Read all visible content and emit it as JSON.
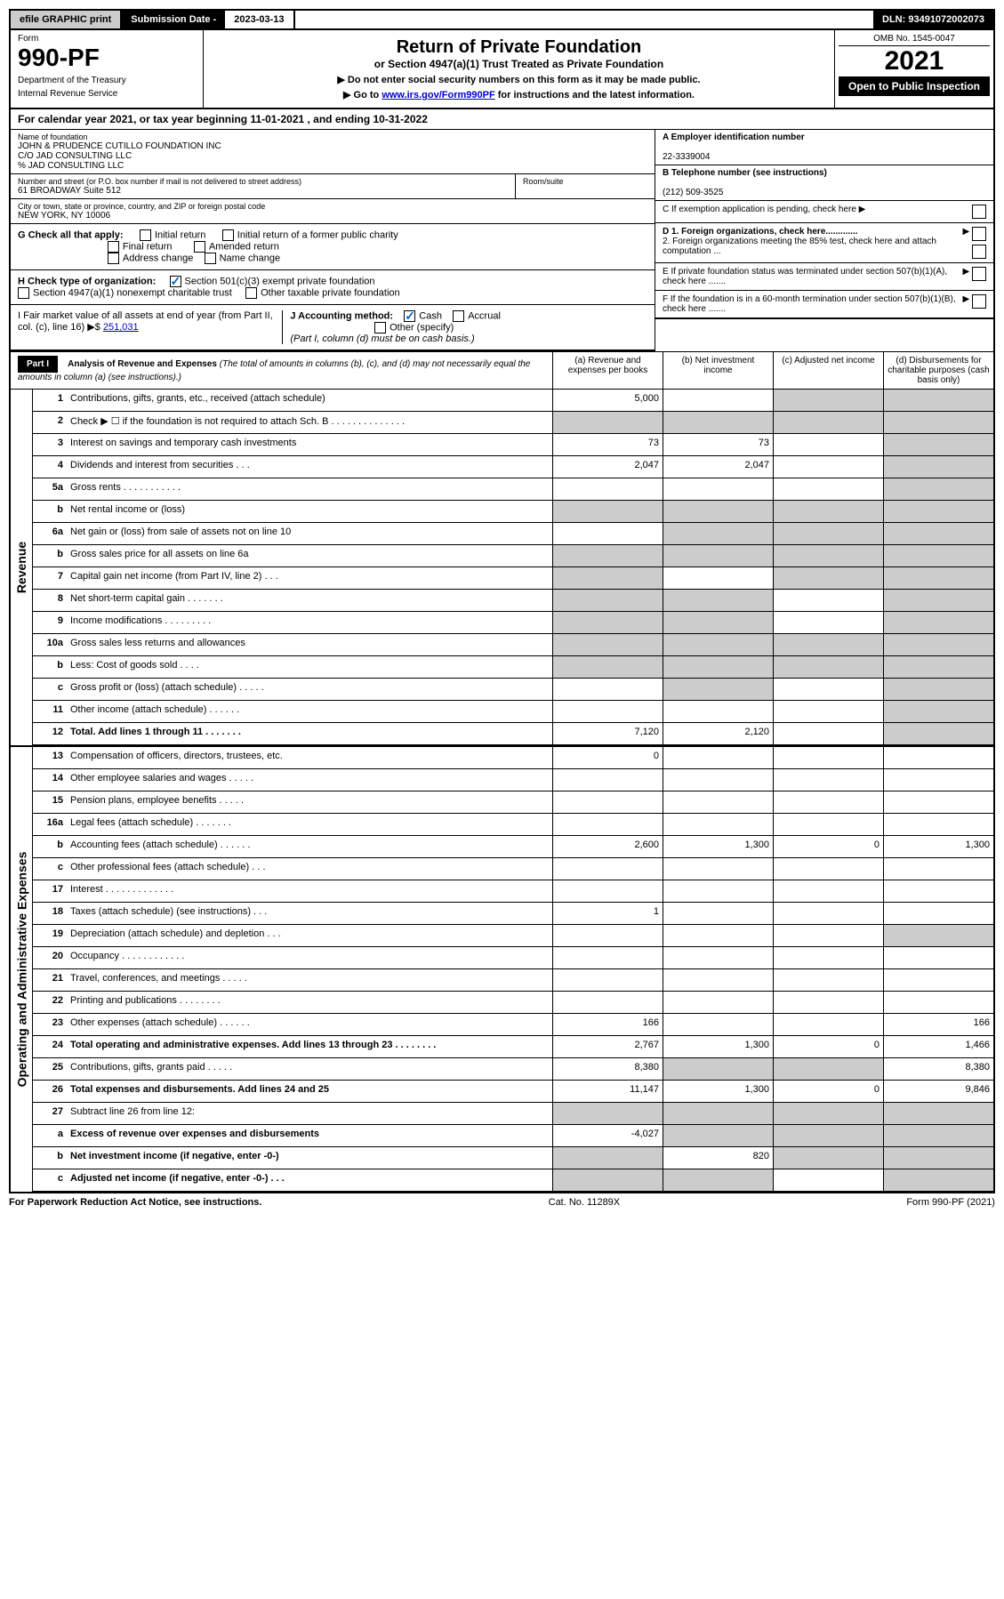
{
  "topbar": {
    "efile": "efile GRAPHIC print",
    "sub_label": "Submission Date - ",
    "sub_date": "2023-03-13",
    "dln": "DLN: 93491072002073"
  },
  "header": {
    "form_label": "Form",
    "form_number": "990-PF",
    "dept1": "Department of the Treasury",
    "dept2": "Internal Revenue Service",
    "title": "Return of Private Foundation",
    "subtitle": "or Section 4947(a)(1) Trust Treated as Private Foundation",
    "note1": "▶ Do not enter social security numbers on this form as it may be made public.",
    "note2_pre": "▶ Go to ",
    "note2_link": "www.irs.gov/Form990PF",
    "note2_post": " for instructions and the latest information.",
    "omb": "OMB No. 1545-0047",
    "year": "2021",
    "open": "Open to Public Inspection"
  },
  "calyear": "For calendar year 2021, or tax year beginning 11-01-2021                    , and ending 10-31-2022",
  "info": {
    "name_label": "Name of foundation",
    "name1": "JOHN & PRUDENCE CUTILLO FOUNDATION INC",
    "name2": "C/O JAD CONSULTING LLC",
    "name3": "% JAD CONSULTING LLC",
    "addr_label": "Number and street (or P.O. box number if mail is not delivered to street address)",
    "addr": "61 BROADWAY Suite 512",
    "room_label": "Room/suite",
    "city_label": "City or town, state or province, country, and ZIP or foreign postal code",
    "city": "NEW YORK, NY  10006",
    "ein_label": "A Employer identification number",
    "ein": "22-3339004",
    "phone_label": "B Telephone number (see instructions)",
    "phone": "(212) 509-3525",
    "c_label": "C If exemption application is pending, check here",
    "d1_label": "D 1. Foreign organizations, check here.............",
    "d2_label": "2. Foreign organizations meeting the 85% test, check here and attach computation ...",
    "e_label": "E  If private foundation status was terminated under section 507(b)(1)(A), check here .......",
    "f_label": "F  If the foundation is in a 60-month termination under section 507(b)(1)(B), check here .......",
    "g_label": "G Check all that apply:",
    "g_initial": "Initial return",
    "g_initial_former": "Initial return of a former public charity",
    "g_final": "Final return",
    "g_amended": "Amended return",
    "g_address": "Address change",
    "g_name": "Name change",
    "h_label": "H Check type of organization:",
    "h_501c3": "Section 501(c)(3) exempt private foundation",
    "h_4947": "Section 4947(a)(1) nonexempt charitable trust",
    "h_other": "Other taxable private foundation",
    "i_label": "I Fair market value of all assets at end of year (from Part II, col. (c), line 16) ▶$",
    "i_value": "251,031",
    "j_label": "J Accounting method:",
    "j_cash": "Cash",
    "j_accrual": "Accrual",
    "j_other": "Other (specify)",
    "j_note": "(Part I, column (d) must be on cash basis.)"
  },
  "part1": {
    "header": "Part I",
    "title": "Analysis of Revenue and Expenses",
    "title_note": " (The total of amounts in columns (b), (c), and (d) may not necessarily equal the amounts in column (a) (see instructions).)",
    "col_a": "(a) Revenue and expenses per books",
    "col_b": "(b) Net investment income",
    "col_c": "(c) Adjusted net income",
    "col_d": "(d) Disbursements for charitable purposes (cash basis only)"
  },
  "sections": {
    "revenue": "Revenue",
    "expenses": "Operating and Administrative Expenses"
  },
  "rows": [
    {
      "num": "1",
      "desc": "Contributions, gifts, grants, etc., received (attach schedule)",
      "a": "5,000",
      "b": "",
      "c": "",
      "d": "",
      "grey_c": true,
      "grey_d": true
    },
    {
      "num": "2",
      "desc": "Check ▶ ☐ if the foundation is not required to attach Sch. B    .  .  .  .  .  .  .  .  .  .  .  .  .  .",
      "a": "",
      "b": "",
      "c": "",
      "d": "",
      "grey_a": true,
      "grey_b": true,
      "grey_c": true,
      "grey_d": true
    },
    {
      "num": "3",
      "desc": "Interest on savings and temporary cash investments",
      "a": "73",
      "b": "73",
      "c": "",
      "d": "",
      "grey_d": true
    },
    {
      "num": "4",
      "desc": "Dividends and interest from securities   .  .  .",
      "a": "2,047",
      "b": "2,047",
      "c": "",
      "d": "",
      "grey_d": true
    },
    {
      "num": "5a",
      "desc": "Gross rents   .  .  .  .  .  .  .  .  .  .  .",
      "a": "",
      "b": "",
      "c": "",
      "d": "",
      "grey_d": true
    },
    {
      "num": "b",
      "desc": "Net rental income or (loss)",
      "a": "",
      "b": "",
      "c": "",
      "d": "",
      "grey_a": true,
      "grey_b": true,
      "grey_c": true,
      "grey_d": true
    },
    {
      "num": "6a",
      "desc": "Net gain or (loss) from sale of assets not on line 10",
      "a": "",
      "b": "",
      "c": "",
      "d": "",
      "grey_b": true,
      "grey_c": true,
      "grey_d": true
    },
    {
      "num": "b",
      "desc": "Gross sales price for all assets on line 6a",
      "a": "",
      "b": "",
      "c": "",
      "d": "",
      "grey_a": true,
      "grey_b": true,
      "grey_c": true,
      "grey_d": true
    },
    {
      "num": "7",
      "desc": "Capital gain net income (from Part IV, line 2)   .  .  .",
      "a": "",
      "b": "",
      "c": "",
      "d": "",
      "grey_a": true,
      "grey_c": true,
      "grey_d": true
    },
    {
      "num": "8",
      "desc": "Net short-term capital gain   .  .  .  .  .  .  .",
      "a": "",
      "b": "",
      "c": "",
      "d": "",
      "grey_a": true,
      "grey_b": true,
      "grey_d": true
    },
    {
      "num": "9",
      "desc": "Income modifications   .  .  .  .  .  .  .  .  .",
      "a": "",
      "b": "",
      "c": "",
      "d": "",
      "grey_a": true,
      "grey_b": true,
      "grey_d": true
    },
    {
      "num": "10a",
      "desc": "Gross sales less returns and allowances",
      "a": "",
      "b": "",
      "c": "",
      "d": "",
      "grey_a": true,
      "grey_b": true,
      "grey_c": true,
      "grey_d": true
    },
    {
      "num": "b",
      "desc": "Less: Cost of goods sold   .  .  .  .",
      "a": "",
      "b": "",
      "c": "",
      "d": "",
      "grey_a": true,
      "grey_b": true,
      "grey_c": true,
      "grey_d": true
    },
    {
      "num": "c",
      "desc": "Gross profit or (loss) (attach schedule)   .  .  .  .  .",
      "a": "",
      "b": "",
      "c": "",
      "d": "",
      "grey_b": true,
      "grey_d": true
    },
    {
      "num": "11",
      "desc": "Other income (attach schedule)   .  .  .  .  .  .",
      "a": "",
      "b": "",
      "c": "",
      "d": "",
      "grey_d": true
    },
    {
      "num": "12",
      "desc": "Total. Add lines 1 through 11   .  .  .  .  .  .  .",
      "a": "7,120",
      "b": "2,120",
      "c": "",
      "d": "",
      "bold": true,
      "grey_d": true
    }
  ],
  "exp_rows": [
    {
      "num": "13",
      "desc": "Compensation of officers, directors, trustees, etc.",
      "a": "0",
      "b": "",
      "c": "",
      "d": ""
    },
    {
      "num": "14",
      "desc": "Other employee salaries and wages   .  .  .  .  .",
      "a": "",
      "b": "",
      "c": "",
      "d": ""
    },
    {
      "num": "15",
      "desc": "Pension plans, employee benefits   .  .  .  .  .",
      "a": "",
      "b": "",
      "c": "",
      "d": ""
    },
    {
      "num": "16a",
      "desc": "Legal fees (attach schedule)   .  .  .  .  .  .  .",
      "a": "",
      "b": "",
      "c": "",
      "d": ""
    },
    {
      "num": "b",
      "desc": "Accounting fees (attach schedule)   .  .  .  .  .  .",
      "a": "2,600",
      "b": "1,300",
      "c": "0",
      "d": "1,300"
    },
    {
      "num": "c",
      "desc": "Other professional fees (attach schedule)   .  .  .",
      "a": "",
      "b": "",
      "c": "",
      "d": ""
    },
    {
      "num": "17",
      "desc": "Interest   .  .  .  .  .  .  .  .  .  .  .  .  .",
      "a": "",
      "b": "",
      "c": "",
      "d": ""
    },
    {
      "num": "18",
      "desc": "Taxes (attach schedule) (see instructions)   .  .  .",
      "a": "1",
      "b": "",
      "c": "",
      "d": ""
    },
    {
      "num": "19",
      "desc": "Depreciation (attach schedule) and depletion   .  .  .",
      "a": "",
      "b": "",
      "c": "",
      "d": "",
      "grey_d": true
    },
    {
      "num": "20",
      "desc": "Occupancy   .  .  .  .  .  .  .  .  .  .  .  .",
      "a": "",
      "b": "",
      "c": "",
      "d": ""
    },
    {
      "num": "21",
      "desc": "Travel, conferences, and meetings   .  .  .  .  .",
      "a": "",
      "b": "",
      "c": "",
      "d": ""
    },
    {
      "num": "22",
      "desc": "Printing and publications   .  .  .  .  .  .  .  .",
      "a": "",
      "b": "",
      "c": "",
      "d": ""
    },
    {
      "num": "23",
      "desc": "Other expenses (attach schedule)   .  .  .  .  .  .",
      "a": "166",
      "b": "",
      "c": "",
      "d": "166"
    },
    {
      "num": "24",
      "desc": "Total operating and administrative expenses. Add lines 13 through 23   .  .  .  .  .  .  .  .",
      "a": "2,767",
      "b": "1,300",
      "c": "0",
      "d": "1,466",
      "bold": true
    },
    {
      "num": "25",
      "desc": "Contributions, gifts, grants paid   .  .  .  .  .",
      "a": "8,380",
      "b": "",
      "c": "",
      "d": "8,380",
      "grey_b": true,
      "grey_c": true
    },
    {
      "num": "26",
      "desc": "Total expenses and disbursements. Add lines 24 and 25",
      "a": "11,147",
      "b": "1,300",
      "c": "0",
      "d": "9,846",
      "bold": true
    },
    {
      "num": "27",
      "desc": "Subtract line 26 from line 12:",
      "a": "",
      "b": "",
      "c": "",
      "d": "",
      "grey_a": true,
      "grey_b": true,
      "grey_c": true,
      "grey_d": true
    },
    {
      "num": "a",
      "desc": "Excess of revenue over expenses and disbursements",
      "a": "-4,027",
      "b": "",
      "c": "",
      "d": "",
      "bold": true,
      "grey_b": true,
      "grey_c": true,
      "grey_d": true
    },
    {
      "num": "b",
      "desc": "Net investment income (if negative, enter -0-)",
      "a": "",
      "b": "820",
      "c": "",
      "d": "",
      "bold": true,
      "grey_a": true,
      "grey_c": true,
      "grey_d": true
    },
    {
      "num": "c",
      "desc": "Adjusted net income (if negative, enter -0-)   .  .  .",
      "a": "",
      "b": "",
      "c": "",
      "d": "",
      "bold": true,
      "grey_a": true,
      "grey_b": true,
      "grey_d": true
    }
  ],
  "footer": {
    "left": "For Paperwork Reduction Act Notice, see instructions.",
    "center": "Cat. No. 11289X",
    "right": "Form 990-PF (2021)"
  }
}
